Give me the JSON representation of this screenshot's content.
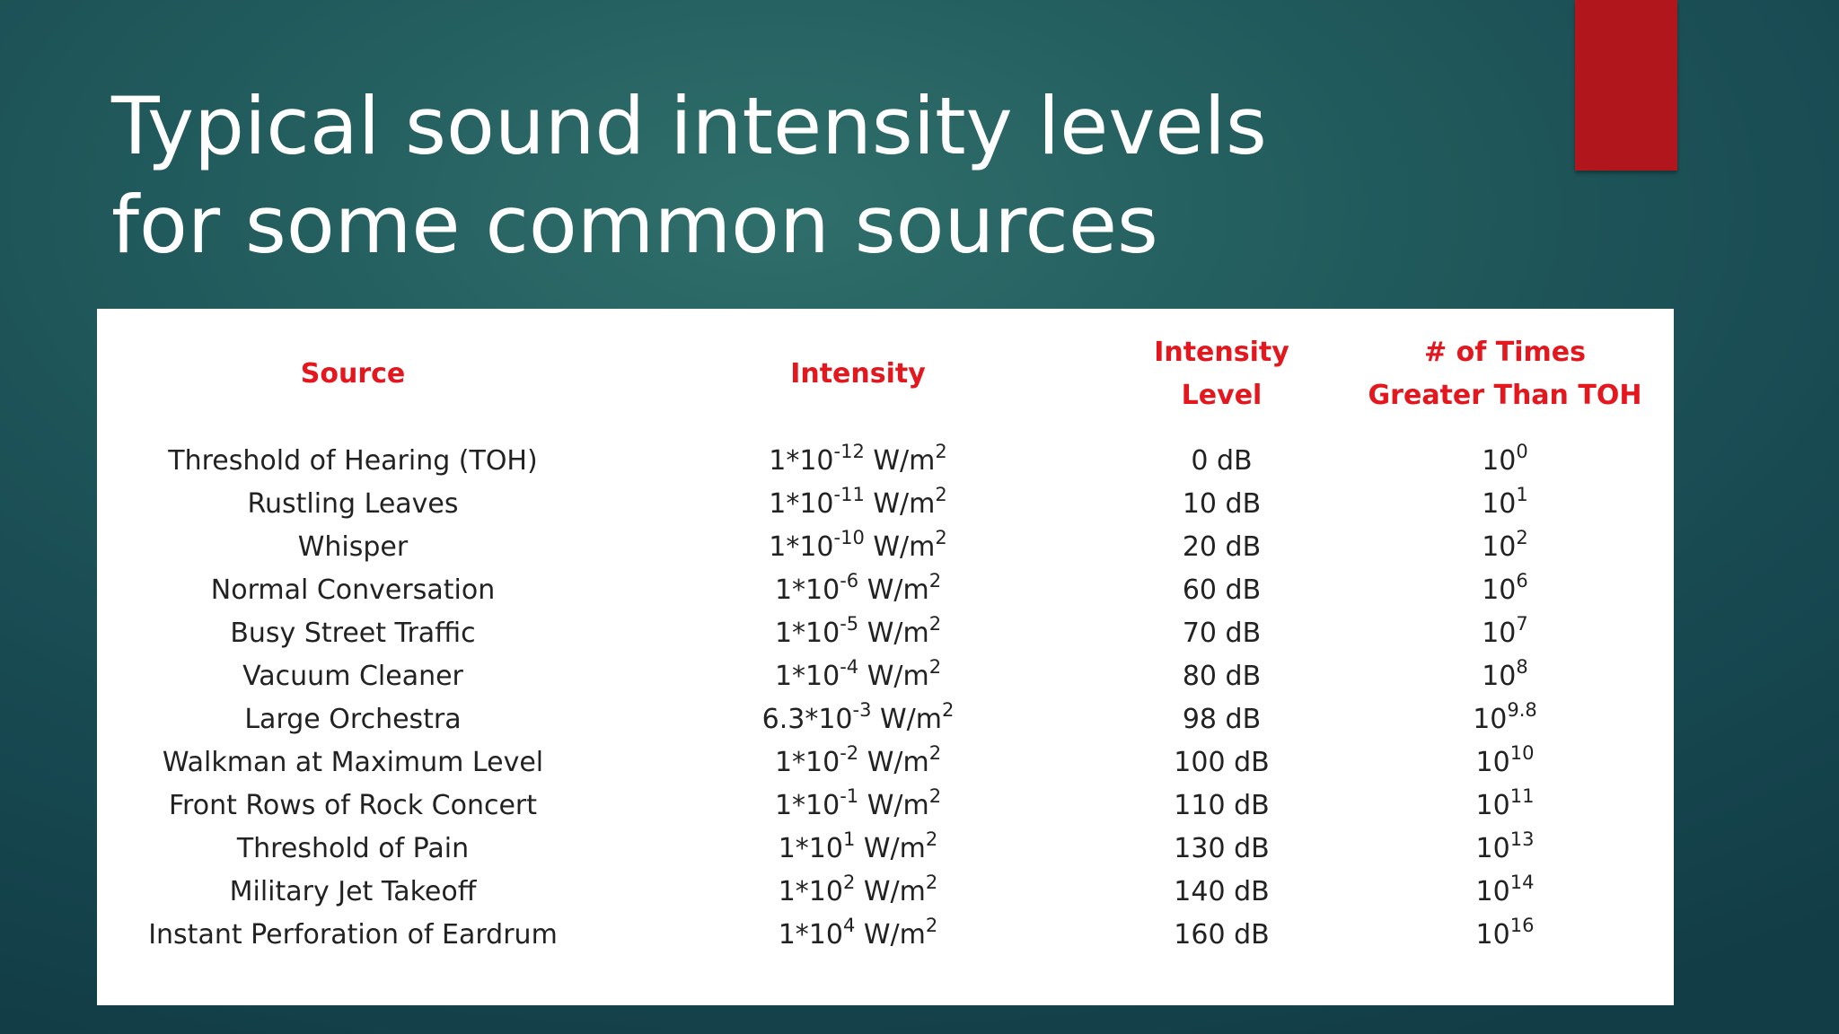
{
  "slide": {
    "title_line1": "Typical sound intensity levels",
    "title_line2": "for some common sources",
    "accent_color": "#b0161b",
    "background_color": "#1c4f56"
  },
  "table": {
    "header_color": "#e3171d",
    "headers": {
      "source": "Source",
      "intensity": "Intensity",
      "level_line1": "Intensity",
      "level_line2": "Level",
      "times_line1": "# of Times",
      "times_line2": "Greater Than TOH"
    },
    "rows": [
      {
        "source": "Threshold of Hearing (TOH)",
        "mant": "1*10",
        "exp": "-12",
        "unit": " W/m",
        "unit_exp": "2",
        "level": "0 dB",
        "base": "10",
        "times_exp": "0"
      },
      {
        "source": "Rustling Leaves",
        "mant": "1*10",
        "exp": "-11",
        "unit": " W/m",
        "unit_exp": "2",
        "level": "10 dB",
        "base": "10",
        "times_exp": "1"
      },
      {
        "source": "Whisper",
        "mant": "1*10",
        "exp": "-10",
        "unit": " W/m",
        "unit_exp": "2",
        "level": "20 dB",
        "base": "10",
        "times_exp": "2"
      },
      {
        "source": "Normal Conversation",
        "mant": "1*10",
        "exp": "-6",
        "unit": " W/m",
        "unit_exp": "2",
        "level": "60 dB",
        "base": "10",
        "times_exp": "6"
      },
      {
        "source": "Busy Street Traffic",
        "mant": "1*10",
        "exp": "-5",
        "unit": " W/m",
        "unit_exp": "2",
        "level": "70 dB",
        "base": "10",
        "times_exp": "7"
      },
      {
        "source": "Vacuum Cleaner",
        "mant": "1*10",
        "exp": "-4",
        "unit": " W/m",
        "unit_exp": "2",
        "level": "80 dB",
        "base": "10",
        "times_exp": "8"
      },
      {
        "source": "Large Orchestra",
        "mant": "6.3*10",
        "exp": "-3",
        "unit": " W/m",
        "unit_exp": "2",
        "level": "98 dB",
        "base": "10",
        "times_exp": "9.8"
      },
      {
        "source": "Walkman at Maximum Level",
        "mant": "1*10",
        "exp": "-2",
        "unit": " W/m",
        "unit_exp": "2",
        "level": "100 dB",
        "base": "10",
        "times_exp": "10"
      },
      {
        "source": "Front Rows of Rock Concert",
        "mant": "1*10",
        "exp": "-1",
        "unit": " W/m",
        "unit_exp": "2",
        "level": "110 dB",
        "base": "10",
        "times_exp": "11"
      },
      {
        "source": "Threshold of Pain",
        "mant": "1*10",
        "exp": "1",
        "unit": " W/m",
        "unit_exp": "2",
        "level": "130 dB",
        "base": "10",
        "times_exp": "13"
      },
      {
        "source": "Military Jet Takeoff",
        "mant": "1*10",
        "exp": "2",
        "unit": " W/m",
        "unit_exp": "2",
        "level": "140 dB",
        "base": "10",
        "times_exp": "14"
      },
      {
        "source": "Instant Perforation of Eardrum",
        "mant": "1*10",
        "exp": "4",
        "unit": " W/m",
        "unit_exp": "2",
        "level": "160 dB",
        "base": "10",
        "times_exp": "16"
      }
    ]
  }
}
